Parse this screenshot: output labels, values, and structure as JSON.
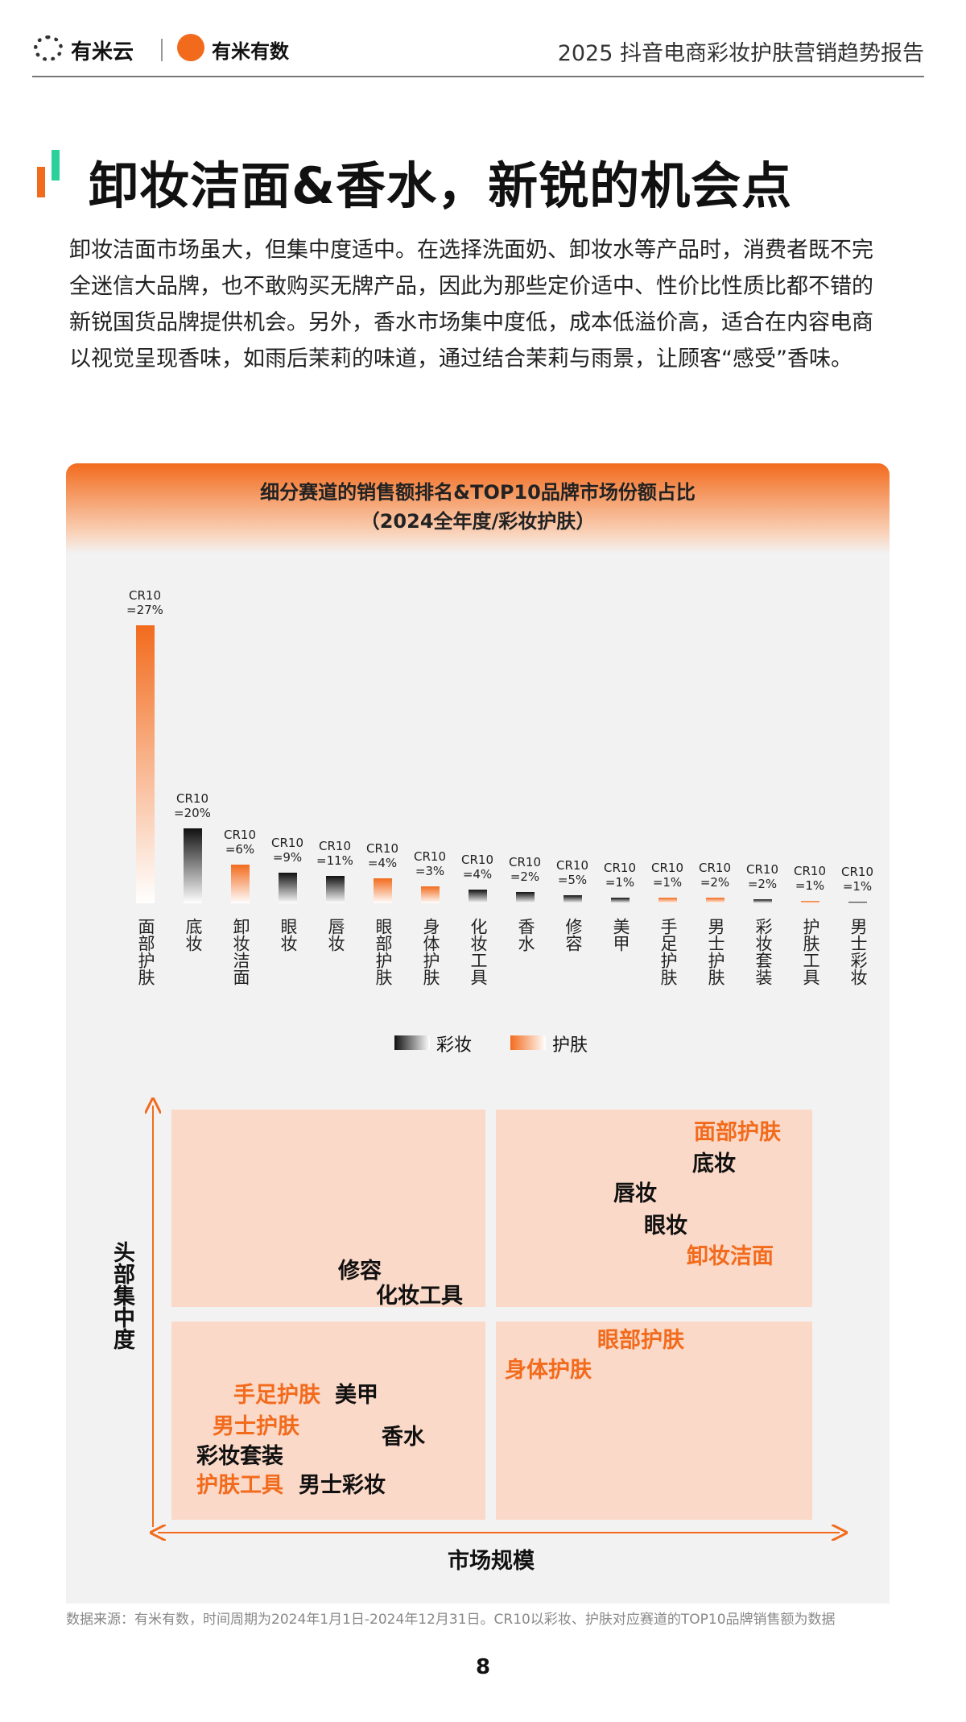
{
  "header": {
    "brand_left": "有米云",
    "brand_right": "有米有数",
    "report_title": "2025 抖音电商彩妆护肤营销趋势报告"
  },
  "title": "卸妆洁面&香水，新锐的机会点",
  "paragraph": "卸妆洁面市场虽大，但集中度适中。在选择洗面奶、卸妆水等产品时，消费者既不完全迷信大品牌，也不敢购买无牌产品，因此为那些定价适中、性价比性质比都不错的新锐国货品牌提供机会。另外，香水市场集中度低，成本低溢价高，适合在内容电商以视觉呈现香味，如雨后茉莉的味道，通过结合茉莉与雨景，让顾客“感受”香味。",
  "chart_data": {
    "type": "bar",
    "title": "细分赛道的销售额排名&TOP10品牌市场份额占比",
    "subtitle": "（2024全年度/彩妆护肤）",
    "categories": [
      "面部护肤",
      "底妆",
      "卸妆洁面",
      "眼妆",
      "唇妆",
      "眼部护肤",
      "身体护肤",
      "化妆工具",
      "香水",
      "修容",
      "美甲",
      "手足护肤",
      "男士护肤",
      "彩妆套装",
      "护肤工具",
      "男士彩妆"
    ],
    "series": [
      {
        "name": "彩妆",
        "color": "#111111",
        "values": [
          null,
          27,
          null,
          11,
          10,
          null,
          null,
          5,
          4,
          3,
          2,
          null,
          null,
          1.5,
          null,
          0.5
        ]
      },
      {
        "name": "护肤",
        "color": "#f26b1d",
        "values": [
          100,
          null,
          14,
          null,
          null,
          9,
          6,
          null,
          null,
          null,
          null,
          2,
          2,
          null,
          1,
          null
        ]
      }
    ],
    "annotations": [
      [
        "CR10",
        "=27%"
      ],
      [
        "CR10",
        "=20%"
      ],
      [
        "CR10",
        "=6%"
      ],
      [
        "CR10",
        "=9%"
      ],
      [
        "CR10",
        "=11%"
      ],
      [
        "CR10",
        "=4%"
      ],
      [
        "CR10",
        "=3%"
      ],
      [
        "CR10",
        "=4%"
      ],
      [
        "CR10",
        "=2%"
      ],
      [
        "CR10",
        "=5%"
      ],
      [
        "CR10",
        "=1%"
      ],
      [
        "CR10",
        "=1%"
      ],
      [
        "CR10",
        "=2%"
      ],
      [
        "CR10",
        "=2%"
      ],
      [
        "CR10",
        "=1%"
      ],
      [
        "CR10",
        "=1%"
      ]
    ],
    "ylim": [
      0,
      100
    ]
  },
  "quadrant": {
    "y_label": "头部集中度",
    "x_label": "市场规模",
    "items": [
      {
        "text": "面部护肤",
        "color": "#f26b1d"
      },
      {
        "text": "底妆",
        "color": "#111111"
      },
      {
        "text": "唇妆",
        "color": "#111111"
      },
      {
        "text": "眼妆",
        "color": "#111111"
      },
      {
        "text": "卸妆洁面",
        "color": "#f26b1d"
      },
      {
        "text": "修容",
        "color": "#111111"
      },
      {
        "text": "化妆工具",
        "color": "#111111"
      },
      {
        "text": "眼部护肤",
        "color": "#f26b1d"
      },
      {
        "text": "身体护肤",
        "color": "#f26b1d"
      },
      {
        "text": "手足护肤",
        "color": "#f26b1d"
      },
      {
        "text": "美甲",
        "color": "#111111"
      },
      {
        "text": "男士护肤",
        "color": "#f26b1d"
      },
      {
        "text": "香水",
        "color": "#111111"
      },
      {
        "text": "彩妆套装",
        "color": "#111111"
      },
      {
        "text": "护肤工具",
        "color": "#f26b1d"
      },
      {
        "text": "男士彩妆",
        "color": "#111111"
      }
    ]
  },
  "footnote": "数据来源：有米有数，时间周期为2024年1月1日-2024年12月31日。CR10以彩妆、护肤对应赛道的TOP10品牌销售额为数据",
  "page_number": "8"
}
